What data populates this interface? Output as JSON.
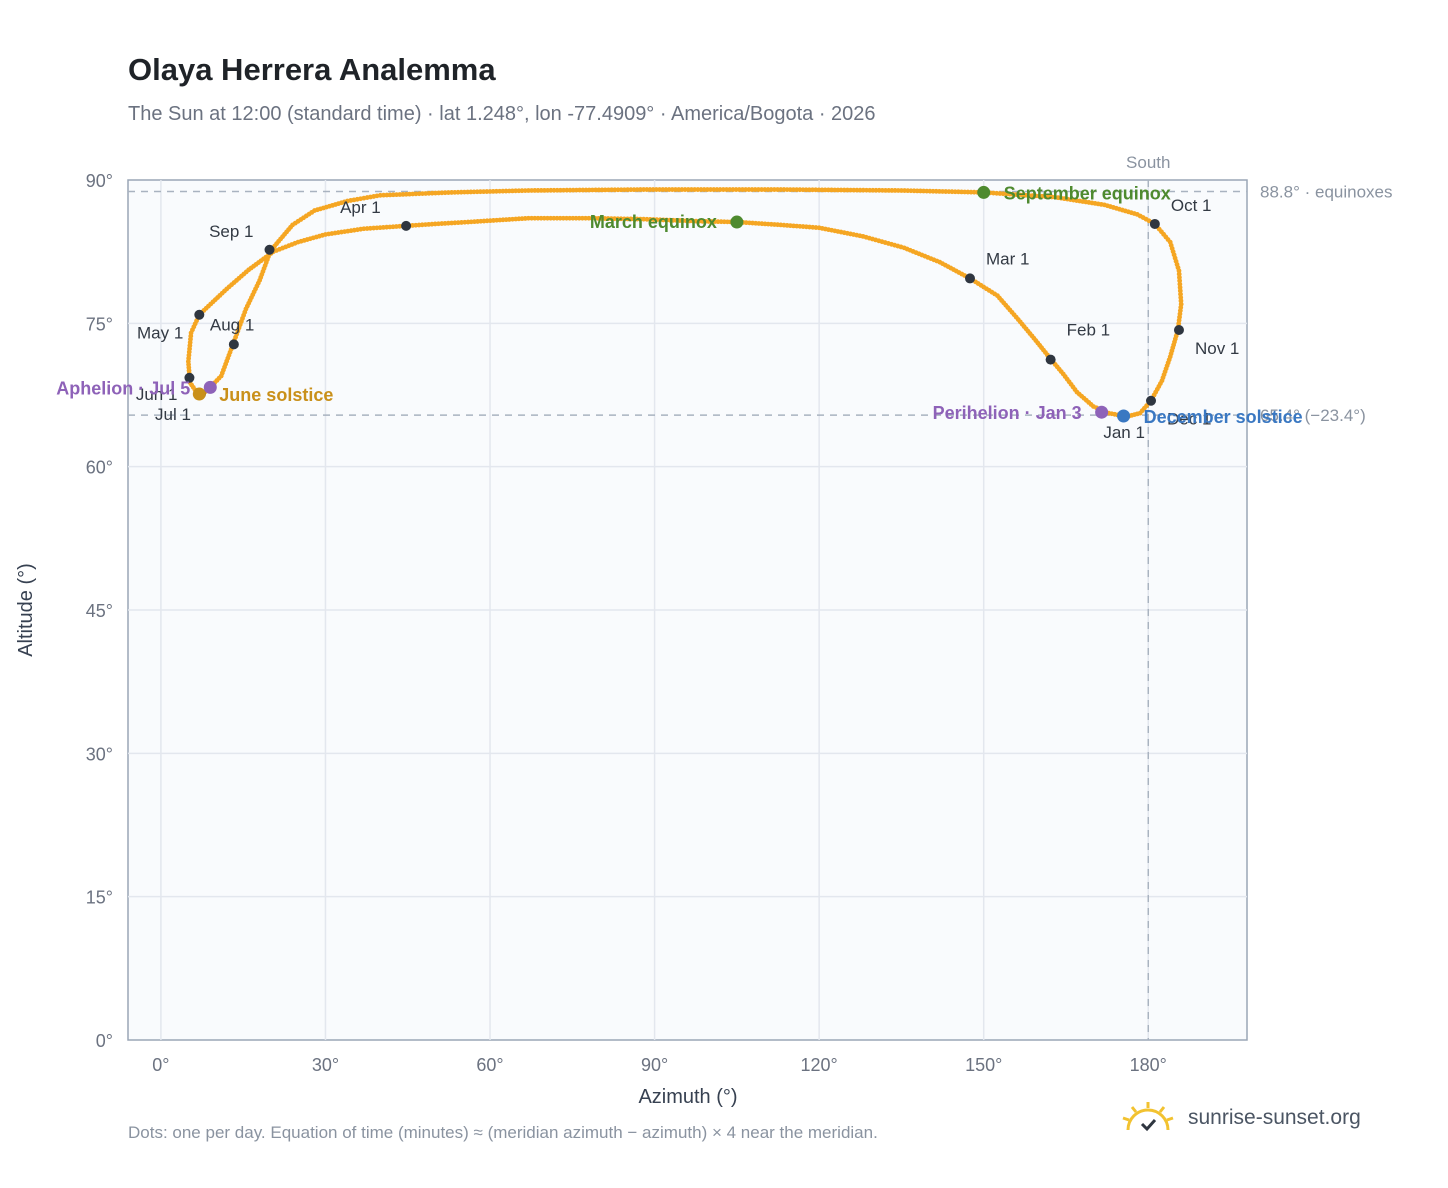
{
  "header": {
    "title": "Olaya Herrera Analemma",
    "subtitle": "The Sun at 12:00 (standard time) · lat 1.248°, lon -77.4909° · America/Bogota · 2026"
  },
  "footer": {
    "note": "Dots: one per day. Equation of time (minutes) ≈ (meridian azimuth − azimuth) × 4 near the meridian.",
    "brand": "sunrise-sunset.org"
  },
  "colors": {
    "curve": "#f5a623",
    "month_marker": "#2f3640",
    "equinox": "#4e8a2f",
    "june_solstice": "#c9901a",
    "december_solstice": "#3a78c2",
    "apsis": "#8e62b8",
    "grid": "#e3e7ee",
    "plot_bg": "#f9fbfd",
    "ref_line": "#a9b3c0"
  },
  "chart_data": {
    "type": "scatter",
    "title": "Olaya Herrera Analemma",
    "xlabel": "Azimuth (°)",
    "ylabel": "Altitude (°)",
    "xlim": [
      -6,
      198
    ],
    "ylim": [
      0,
      90
    ],
    "xticks": [
      0,
      30,
      60,
      90,
      120,
      150,
      180
    ],
    "xtick_labels": [
      "0°",
      "30°",
      "60°",
      "90°",
      "120°",
      "150°",
      "180°"
    ],
    "yticks": [
      0,
      15,
      30,
      45,
      60,
      75,
      90
    ],
    "ytick_labels": [
      "0°",
      "15°",
      "30°",
      "45°",
      "60°",
      "75°",
      "90°"
    ],
    "grid": true,
    "reference_lines": {
      "meridian": {
        "x": 180,
        "label": "South"
      },
      "equinox_altitude": {
        "y": 88.8,
        "label": "88.8° · equinoxes"
      },
      "solstice_altitude": {
        "y": 65.4,
        "label": "65.4° (−23.4°)"
      }
    },
    "series": [
      {
        "name": "daily sun position",
        "points": [
          [
            175.5,
            65.3
          ],
          [
            172.8,
            65.6
          ],
          [
            170.0,
            66.3
          ],
          [
            167.0,
            67.8
          ],
          [
            164.5,
            69.7
          ],
          [
            162.3,
            71.2
          ],
          [
            159.5,
            73.2
          ],
          [
            156.3,
            75.4
          ],
          [
            152.5,
            77.9
          ],
          [
            147.5,
            79.7
          ],
          [
            142.0,
            81.4
          ],
          [
            135.5,
            82.9
          ],
          [
            128.0,
            84.1
          ],
          [
            120.0,
            85.0
          ],
          [
            113.0,
            85.3
          ],
          [
            105.0,
            85.6
          ],
          [
            97.0,
            85.7
          ],
          [
            88.0,
            85.9
          ],
          [
            78.0,
            86.0
          ],
          [
            67.0,
            86.0
          ],
          [
            56.0,
            85.6
          ],
          [
            50.0,
            85.4
          ],
          [
            44.7,
            85.2
          ],
          [
            37.0,
            84.9
          ],
          [
            30.0,
            84.3
          ],
          [
            25.0,
            83.5
          ],
          [
            20.5,
            82.5
          ],
          [
            16.0,
            80.6
          ],
          [
            12.0,
            78.6
          ],
          [
            7.0,
            75.9
          ],
          [
            5.5,
            74.0
          ],
          [
            5.0,
            71.0
          ],
          [
            5.3,
            68.8
          ],
          [
            6.5,
            67.8
          ],
          [
            7.6,
            67.6
          ],
          [
            9.0,
            68.3
          ],
          [
            11.0,
            69.5
          ],
          [
            13.2,
            72.9
          ],
          [
            15.5,
            76.5
          ],
          [
            18.0,
            79.5
          ],
          [
            20.0,
            82.6
          ],
          [
            24.0,
            85.3
          ],
          [
            28.0,
            86.8
          ],
          [
            34.0,
            87.8
          ],
          [
            40.0,
            88.4
          ],
          [
            53.0,
            88.7
          ],
          [
            67.0,
            88.9
          ],
          [
            88.0,
            89.0
          ],
          [
            113.0,
            89.0
          ],
          [
            135.0,
            88.9
          ],
          [
            150.0,
            88.7
          ],
          [
            163.0,
            88.2
          ],
          [
            172.0,
            87.4
          ],
          [
            178.0,
            86.4
          ],
          [
            181.2,
            85.4
          ],
          [
            184.0,
            83.5
          ],
          [
            185.6,
            80.5
          ],
          [
            186.0,
            77.0
          ],
          [
            185.4,
            74.3
          ],
          [
            184.0,
            71.5
          ],
          [
            182.5,
            69.0
          ],
          [
            180.5,
            66.9
          ],
          [
            178.5,
            65.6
          ],
          [
            176.5,
            65.3
          ],
          [
            175.5,
            65.3
          ]
        ]
      }
    ],
    "month_markers": [
      {
        "label": "Jan 1",
        "x": 175.6,
        "y": 65.3
      },
      {
        "label": "Feb 1",
        "x": 162.2,
        "y": 71.2
      },
      {
        "label": "Mar 1",
        "x": 147.5,
        "y": 79.7
      },
      {
        "label": "Apr 1",
        "x": 44.7,
        "y": 85.2
      },
      {
        "label": "May 1",
        "x": 7.0,
        "y": 75.9
      },
      {
        "label": "Jun 1",
        "x": 5.2,
        "y": 69.3
      },
      {
        "label": "Jul 1",
        "x": 7.3,
        "y": 67.6
      },
      {
        "label": "Aug 1",
        "x": 13.3,
        "y": 72.8
      },
      {
        "label": "Sep 1",
        "x": 19.8,
        "y": 82.7
      },
      {
        "label": "Oct 1",
        "x": 181.2,
        "y": 85.4
      },
      {
        "label": "Nov 1",
        "x": 185.6,
        "y": 74.3
      },
      {
        "label": "Dec 1",
        "x": 180.5,
        "y": 66.9
      }
    ],
    "events": [
      {
        "label": "March equinox",
        "x": 105.0,
        "y": 85.6,
        "color_key": "equinox"
      },
      {
        "label": "September equinox",
        "x": 150.0,
        "y": 88.7,
        "color_key": "equinox"
      },
      {
        "label": "June solstice",
        "x": 7.0,
        "y": 67.6,
        "color_key": "june_solstice"
      },
      {
        "label": "December solstice",
        "x": 175.5,
        "y": 65.3,
        "color_key": "december_solstice"
      },
      {
        "label": "Aphelion · Jul 5",
        "x": 9.0,
        "y": 68.3,
        "color_key": "apsis"
      },
      {
        "label": "Perihelion · Jan 3",
        "x": 171.5,
        "y": 65.7,
        "color_key": "apsis"
      }
    ]
  }
}
